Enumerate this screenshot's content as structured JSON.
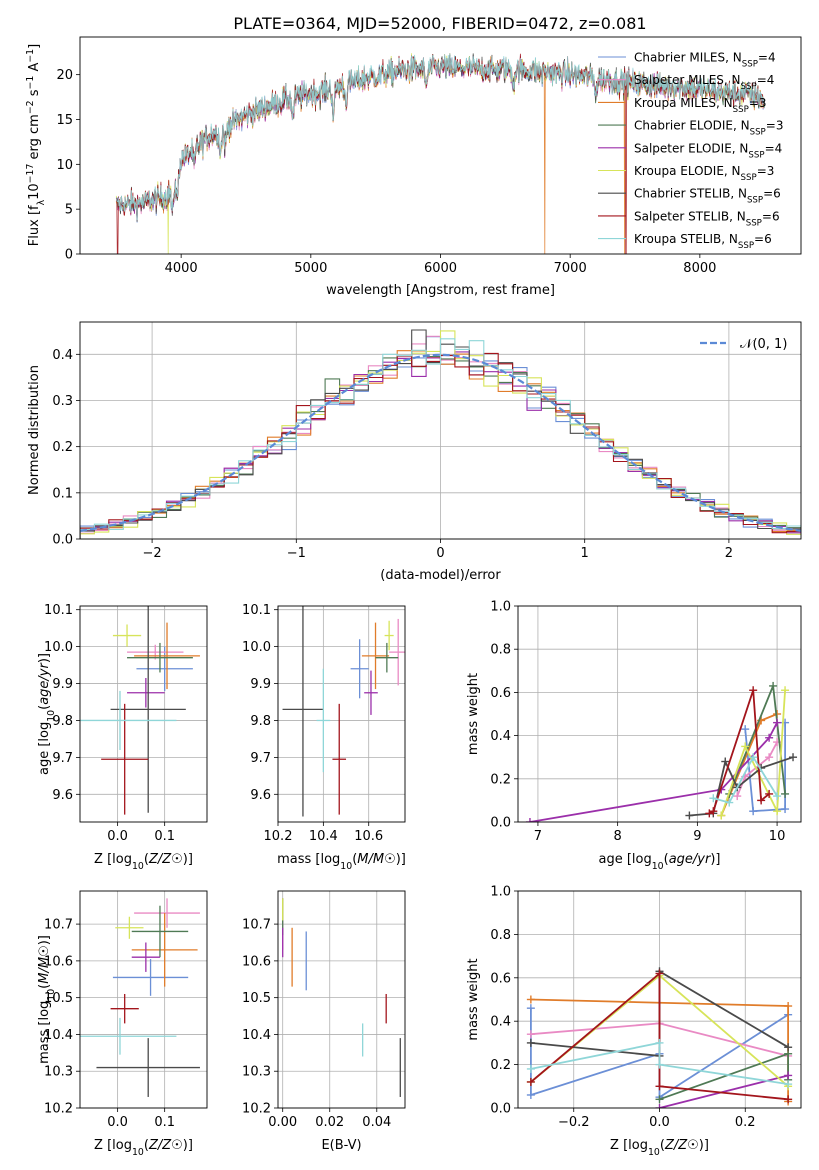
{
  "figure_title": "PLATE=0364, MJD=52000, FIBERID=0472, z=0.081",
  "colors": {
    "chab_miles": "#6b8fd6",
    "salp_miles": "#e98ac4",
    "krou_miles": "#e07c2a",
    "chab_elodie": "#4f7a55",
    "salp_elodie": "#9b2faa",
    "krou_elodie": "#d7e45a",
    "chab_stelib": "#4a4a4a",
    "salp_stelib": "#a3151c",
    "krou_stelib": "#8fd6d8",
    "normal_curve": "#5b8ad6"
  },
  "chart_data": [
    {
      "id": "spectrum",
      "type": "line",
      "xlabel": "wavelength [Angstrom, rest frame]",
      "ylabel": "Flux [f_λ 10^-17 erg cm^-2 s^-1 A^-1]",
      "xlim": [
        3220,
        8780
      ],
      "ylim": [
        0,
        24.2
      ],
      "xticks": [
        4000,
        5000,
        6000,
        7000,
        8000
      ],
      "yticks": [
        0,
        5,
        10,
        15,
        20
      ],
      "legend_position": "upper-right",
      "legend": [
        {
          "base": "Chabrier MILES, N",
          "sub": "SSP",
          "tail": "=4",
          "color_key": "chab_miles"
        },
        {
          "base": "Salpeter MILES, N",
          "sub": "SSP",
          "tail": "=4",
          "color_key": "salp_miles"
        },
        {
          "base": "Kroupa MILES, N",
          "sub": "SSP",
          "tail": "=3",
          "color_key": "krou_miles"
        },
        {
          "base": "Chabrier ELODIE, N",
          "sub": "SSP",
          "tail": "=3",
          "color_key": "chab_elodie"
        },
        {
          "base": "Salpeter ELODIE, N",
          "sub": "SSP",
          "tail": "=4",
          "color_key": "salp_elodie"
        },
        {
          "base": "Kroupa ELODIE, N",
          "sub": "SSP",
          "tail": "=3",
          "color_key": "krou_elodie"
        },
        {
          "base": "Chabrier STELIB, N",
          "sub": "SSP",
          "tail": "=6",
          "color_key": "chab_stelib"
        },
        {
          "base": "Salpeter STELIB, N",
          "sub": "SSP",
          "tail": "=6",
          "color_key": "salp_stelib"
        },
        {
          "base": "Kroupa STELIB, N",
          "sub": "SSP",
          "tail": "=6",
          "color_key": "krou_stelib"
        }
      ],
      "continuum": [
        [
          3500,
          5.5
        ],
        [
          3700,
          5.6
        ],
        [
          3900,
          6.5
        ],
        [
          4000,
          10.5
        ],
        [
          4200,
          13.0
        ],
        [
          4500,
          15.5
        ],
        [
          4800,
          17.2
        ],
        [
          5100,
          18.2
        ],
        [
          5400,
          19.5
        ],
        [
          5700,
          20.5
        ],
        [
          6000,
          20.8
        ],
        [
          6300,
          20.6
        ],
        [
          6600,
          20.5
        ],
        [
          6900,
          20.2
        ],
        [
          7200,
          19.6
        ],
        [
          7500,
          19.0
        ],
        [
          7800,
          18.6
        ],
        [
          8100,
          18.2
        ],
        [
          8400,
          17.7
        ],
        [
          8500,
          17.4
        ]
      ],
      "absorption_lines": [
        [
          3934,
          3.5
        ],
        [
          3969,
          3.0
        ],
        [
          4102,
          2.0
        ],
        [
          4304,
          2.5
        ],
        [
          4340,
          2.0
        ],
        [
          4861,
          2.0
        ],
        [
          5175,
          3.0
        ],
        [
          5270,
          1.8
        ],
        [
          5890,
          2.0
        ],
        [
          6563,
          1.5
        ],
        [
          7200,
          1.5
        ],
        [
          8500,
          1.0
        ]
      ],
      "model_dropouts": [
        [
          3510,
          "salp_stelib"
        ],
        [
          3900,
          "krou_elodie"
        ],
        [
          6805,
          "krou_miles"
        ],
        [
          7420,
          "krou_miles"
        ],
        [
          7430,
          "salp_stelib"
        ]
      ]
    },
    {
      "id": "residuals",
      "type": "line",
      "xlabel": "(data-model)/error",
      "ylabel": "Normed distribution",
      "xlim": [
        -2.5,
        2.5
      ],
      "ylim": [
        0,
        0.47
      ],
      "xticks": [
        -2,
        -1,
        0,
        1,
        2
      ],
      "yticks": [
        0.0,
        0.1,
        0.2,
        0.3,
        0.4
      ],
      "grid": true,
      "legend_position": "upper-right",
      "normal_curve_label": "𝒩(0, 1)"
    },
    {
      "id": "age_vs_Z",
      "type": "scatter",
      "xlabel": "Z [log10(Z/Z☉)]",
      "ylabel": "age  [log10(age/yr)]",
      "xlim": [
        -0.08,
        0.19
      ],
      "ylim": [
        9.525,
        10.11
      ],
      "xticks": [
        0.0,
        0.1
      ],
      "yticks": [
        9.6,
        9.7,
        9.8,
        9.9,
        10.0,
        10.1
      ],
      "grid": true,
      "points": [
        {
          "c": "chab_miles",
          "x": 0.1,
          "xerr": 0.06,
          "y": 9.94,
          "yerr": 0.06
        },
        {
          "c": "salp_miles",
          "x": 0.08,
          "xerr": 0.06,
          "y": 9.985,
          "yerr": 0.02
        },
        {
          "c": "krou_miles",
          "x": 0.105,
          "xerr": 0.07,
          "y": 9.975,
          "yerr": 0.09
        },
        {
          "c": "chab_elodie",
          "x": 0.09,
          "xerr": 0.07,
          "y": 9.97,
          "yerr": 0.04
        },
        {
          "c": "salp_elodie",
          "x": 0.06,
          "xerr": 0.04,
          "y": 9.875,
          "yerr": 0.04
        },
        {
          "c": "krou_elodie",
          "x": 0.02,
          "xerr": 0.03,
          "y": 10.03,
          "yerr": 0.03
        },
        {
          "c": "chab_stelib",
          "x": 0.065,
          "xerr": 0.08,
          "y": 9.83,
          "yerr": 0.28
        },
        {
          "c": "salp_stelib",
          "x": 0.015,
          "xerr": 0.05,
          "y": 9.695,
          "yerr": 0.15
        },
        {
          "c": "krou_stelib",
          "x": 0.005,
          "xerr": 0.12,
          "y": 9.8,
          "yerr": 0.08
        }
      ]
    },
    {
      "id": "age_vs_mass",
      "type": "scatter",
      "xlabel": "mass [log10(M/M☉)]",
      "ylabel": "",
      "xlim": [
        10.2,
        10.76
      ],
      "ylim": [
        9.525,
        10.11
      ],
      "xticks": [
        10.2,
        10.4,
        10.6
      ],
      "yticks": [
        9.6,
        9.7,
        9.8,
        9.9,
        10.0,
        10.1
      ],
      "grid": true,
      "points": [
        {
          "c": "chab_miles",
          "x": 10.56,
          "xerr": 0.04,
          "y": 9.94,
          "yerr": 0.08
        },
        {
          "c": "salp_miles",
          "x": 10.73,
          "xerr": 0.04,
          "y": 9.985,
          "yerr": 0.09
        },
        {
          "c": "krou_miles",
          "x": 10.63,
          "xerr": 0.06,
          "y": 9.975,
          "yerr": 0.09
        },
        {
          "c": "chab_elodie",
          "x": 10.68,
          "xerr": 0.05,
          "y": 9.97,
          "yerr": 0.04
        },
        {
          "c": "salp_elodie",
          "x": 10.61,
          "xerr": 0.03,
          "y": 9.875,
          "yerr": 0.06
        },
        {
          "c": "krou_elodie",
          "x": 10.69,
          "xerr": 0.02,
          "y": 10.03,
          "yerr": 0.04
        },
        {
          "c": "chab_stelib",
          "x": 10.31,
          "xerr": 0.09,
          "y": 9.83,
          "yerr": 0.29
        },
        {
          "c": "salp_stelib",
          "x": 10.47,
          "xerr": 0.03,
          "y": 9.695,
          "yerr": 0.15
        },
        {
          "c": "krou_stelib",
          "x": 10.4,
          "xerr": 0.03,
          "y": 9.8,
          "yerr": 0.14
        }
      ]
    },
    {
      "id": "massweight_vs_age",
      "type": "line",
      "xlabel": "age  [log10(age/yr)]",
      "ylabel": "mass weight",
      "xlim": [
        6.75,
        10.3
      ],
      "ylim": [
        0,
        1.0
      ],
      "xticks": [
        7,
        8,
        9,
        10
      ],
      "yticks": [
        0.0,
        0.2,
        0.4,
        0.6,
        0.8,
        1.0
      ],
      "grid": true,
      "series": [
        {
          "c": "chab_miles",
          "x": [
            9.6,
            9.7,
            10.1,
            10.1
          ],
          "y": [
            0.43,
            0.05,
            0.06,
            0.46
          ]
        },
        {
          "c": "salp_miles",
          "x": [
            9.5,
            9.6,
            9.9,
            10.0
          ],
          "y": [
            0.12,
            0.21,
            0.3,
            0.37
          ]
        },
        {
          "c": "krou_miles",
          "x": [
            9.3,
            9.8,
            10.0
          ],
          "y": [
            0.03,
            0.47,
            0.5
          ]
        },
        {
          "c": "chab_elodie",
          "x": [
            9.4,
            9.95,
            10.1
          ],
          "y": [
            0.13,
            0.63,
            0.13
          ]
        },
        {
          "c": "salp_elodie",
          "x": [
            6.9,
            9.3,
            9.9,
            10.0
          ],
          "y": [
            0.0,
            0.15,
            0.39,
            0.46
          ]
        },
        {
          "c": "krou_elodie",
          "x": [
            9.3,
            9.6,
            10.0,
            10.1
          ],
          "y": [
            0.03,
            0.35,
            0.05,
            0.61
          ]
        },
        {
          "c": "chab_stelib",
          "x": [
            8.9,
            9.2,
            9.35,
            9.5,
            9.8,
            10.2
          ],
          "y": [
            0.03,
            0.04,
            0.28,
            0.16,
            0.25,
            0.3
          ]
        },
        {
          "c": "salp_stelib",
          "x": [
            9.15,
            9.2,
            9.7,
            9.8,
            9.9
          ],
          "y": [
            0.04,
            0.05,
            0.61,
            0.1,
            0.13
          ]
        },
        {
          "c": "krou_stelib",
          "x": [
            9.2,
            9.4,
            9.7,
            10.0
          ],
          "y": [
            0.11,
            0.09,
            0.3,
            0.12
          ]
        }
      ]
    },
    {
      "id": "mass_vs_Z",
      "type": "scatter",
      "xlabel": "Z [log10(Z/Z☉)]",
      "ylabel": "mass [log10(M/M☉)]",
      "xlim": [
        -0.08,
        0.19
      ],
      "ylim": [
        10.2,
        10.79
      ],
      "xticks": [
        0.0,
        0.1
      ],
      "yticks": [
        10.2,
        10.3,
        10.4,
        10.5,
        10.6,
        10.7
      ],
      "grid": true,
      "points": [
        {
          "c": "chab_miles",
          "x": 0.07,
          "xerr": 0.08,
          "y": 10.555,
          "yerr": 0.05
        },
        {
          "c": "salp_miles",
          "x": 0.105,
          "xerr": 0.07,
          "y": 10.73,
          "yerr": 0.04
        },
        {
          "c": "krou_miles",
          "x": 0.1,
          "xerr": 0.07,
          "y": 10.63,
          "yerr": 0.1
        },
        {
          "c": "chab_elodie",
          "x": 0.09,
          "xerr": 0.06,
          "y": 10.68,
          "yerr": 0.07
        },
        {
          "c": "salp_elodie",
          "x": 0.06,
          "xerr": 0.03,
          "y": 10.61,
          "yerr": 0.04
        },
        {
          "c": "krou_elodie",
          "x": 0.025,
          "xerr": 0.03,
          "y": 10.69,
          "yerr": 0.03
        },
        {
          "c": "chab_stelib",
          "x": 0.065,
          "xerr": 0.11,
          "y": 10.31,
          "yerr": 0.08
        },
        {
          "c": "salp_stelib",
          "x": 0.015,
          "xerr": 0.03,
          "y": 10.47,
          "yerr": 0.04
        },
        {
          "c": "krou_stelib",
          "x": 0.005,
          "xerr": 0.12,
          "y": 10.395,
          "yerr": 0.05
        }
      ]
    },
    {
      "id": "mass_vs_ebv",
      "type": "scatter",
      "xlabel": "E(B-V)",
      "ylabel": "",
      "xlim": [
        -0.002,
        0.052
      ],
      "ylim": [
        10.2,
        10.79
      ],
      "xticks": [
        0.0,
        0.02,
        0.04
      ],
      "yticks": [
        10.2,
        10.3,
        10.4,
        10.5,
        10.6,
        10.7
      ],
      "grid": true,
      "points": [
        {
          "c": "chab_miles",
          "x": 0.01,
          "xerr": 0,
          "y": 10.6,
          "yerr": 0.08
        },
        {
          "c": "salp_miles",
          "x": 0.0,
          "xerr": 0,
          "y": 10.7,
          "yerr": 0.07
        },
        {
          "c": "krou_miles",
          "x": 0.004,
          "xerr": 0,
          "y": 10.61,
          "yerr": 0.08
        },
        {
          "c": "chab_elodie",
          "x": 0.0,
          "xerr": 0,
          "y": 10.72,
          "yerr": 0.05
        },
        {
          "c": "salp_elodie",
          "x": 0.0,
          "xerr": 0,
          "y": 10.65,
          "yerr": 0.04
        },
        {
          "c": "krou_elodie",
          "x": 0.0,
          "xerr": 0,
          "y": 10.74,
          "yerr": 0.03
        },
        {
          "c": "chab_stelib",
          "x": 0.05,
          "xerr": 0,
          "y": 10.31,
          "yerr": 0.08
        },
        {
          "c": "salp_stelib",
          "x": 0.044,
          "xerr": 0,
          "y": 10.47,
          "yerr": 0.04
        },
        {
          "c": "krou_stelib",
          "x": 0.034,
          "xerr": 0,
          "y": 10.385,
          "yerr": 0.045
        }
      ]
    },
    {
      "id": "massweight_vs_Z",
      "type": "line",
      "xlabel": "Z [log10(Z/Z☉)]",
      "ylabel": "mass weight",
      "xlim": [
        -0.33,
        0.33
      ],
      "ylim": [
        0,
        1.0
      ],
      "xticks": [
        -0.2,
        0.0,
        0.2
      ],
      "yticks": [
        0.0,
        0.2,
        0.4,
        0.6,
        0.8,
        1.0
      ],
      "grid": true,
      "series": [
        {
          "c": "chab_miles",
          "x": [
            -0.3,
            -0.3,
            0.0,
            0.0,
            0.3
          ],
          "y": [
            0.46,
            0.06,
            0.25,
            0.05,
            0.43
          ]
        },
        {
          "c": "salp_miles",
          "x": [
            -0.3,
            0.0,
            0.3
          ],
          "y": [
            0.34,
            0.39,
            0.24
          ]
        },
        {
          "c": "krou_miles",
          "x": [
            -0.3,
            0.3,
            0.3
          ],
          "y": [
            0.5,
            0.47,
            0.03
          ]
        },
        {
          "c": "chab_elodie",
          "x": [
            0.0,
            0.3,
            0.3
          ],
          "y": [
            0.04,
            0.25,
            0.13
          ]
        },
        {
          "c": "salp_elodie",
          "x": [
            0.0,
            0.3
          ],
          "y": [
            0.0,
            0.15
          ]
        },
        {
          "c": "krou_elodie",
          "x": [
            -0.3,
            0.0,
            0.3
          ],
          "y": [
            0.12,
            0.61,
            0.1
          ]
        },
        {
          "c": "chab_stelib",
          "x": [
            -0.3,
            0.0,
            0.0,
            0.3
          ],
          "y": [
            0.3,
            0.24,
            0.63,
            0.28
          ]
        },
        {
          "c": "salp_stelib",
          "x": [
            -0.3,
            0.0,
            0.0,
            0.3
          ],
          "y": [
            0.12,
            0.62,
            0.1,
            0.04
          ]
        },
        {
          "c": "krou_stelib",
          "x": [
            -0.3,
            0.0,
            0.0,
            0.3
          ],
          "y": [
            0.18,
            0.3,
            0.2,
            0.11
          ]
        }
      ]
    }
  ]
}
